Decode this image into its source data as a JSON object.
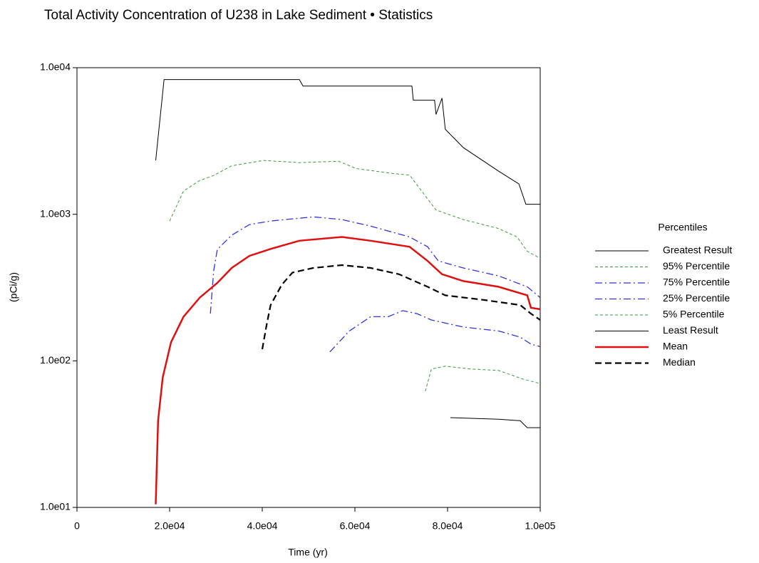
{
  "chart_data": {
    "type": "line",
    "title": "Total Activity Concentration of U238 in Lake Sediment • Statistics",
    "x_label": "Time (yr)",
    "y_label": "(pCi/g)",
    "legend_title": "Percentiles",
    "log_y": true,
    "xlim": [
      0,
      100000
    ],
    "ylim": [
      10,
      10000
    ],
    "xticks": [
      0,
      {
        "value": 20000,
        "label": "2.0e04"
      },
      {
        "value": 40000,
        "label": "4.0e04"
      },
      {
        "value": 60000,
        "label": "6.0e04"
      },
      {
        "value": 80000,
        "label": "8.0e04"
      },
      {
        "value": 100000,
        "label": "1.0e05"
      }
    ],
    "yticks": [
      {
        "value": 10,
        "label": "1.0e01"
      },
      {
        "value": 100,
        "label": "1.0e02"
      },
      {
        "value": 1000,
        "label": "1.0e03"
      },
      {
        "value": 10000,
        "label": "1.0e04"
      }
    ],
    "series": [
      {
        "name": "Greatest Result",
        "color": "#000000",
        "style": "solid",
        "linewidth": 1,
        "x": [
          17000,
          18800,
          48000,
          48800,
          72300,
          72600,
          77200,
          77500,
          78800,
          79500,
          83400,
          91000,
          95400,
          96900,
          100000
        ],
        "values": [
          2330,
          8300,
          8300,
          7500,
          7500,
          6000,
          6000,
          4800,
          6200,
          3800,
          2850,
          1970,
          1610,
          1170,
          1170
        ]
      },
      {
        "name": "95% Percentile",
        "color": "#3a9a3a",
        "style": "dashed",
        "linewidth": 1,
        "x": [
          20000,
          23000,
          26500,
          29500,
          33400,
          40300,
          48000,
          56500,
          60300,
          68000,
          71800,
          77500,
          83400,
          91000,
          95000,
          97200,
          100000
        ],
        "values": [
          900,
          1440,
          1700,
          1840,
          2140,
          2330,
          2250,
          2300,
          2050,
          1900,
          1850,
          1070,
          920,
          800,
          700,
          560,
          500
        ]
      },
      {
        "name": "75% Percentile",
        "color": "#3333dd",
        "style": "dashdot",
        "linewidth": 1.3,
        "x": [
          28800,
          29500,
          30300,
          33400,
          37200,
          41800,
          48000,
          51000,
          57200,
          63400,
          71800,
          75700,
          78000,
          83400,
          91000,
          97200,
          100000
        ],
        "values": [
          210,
          411,
          575,
          720,
          850,
          900,
          940,
          960,
          920,
          830,
          700,
          600,
          480,
          430,
          380,
          320,
          270
        ]
      },
      {
        "name": "25% Percentile",
        "color": "#3333dd",
        "style": "dashdot",
        "linewidth": 1.3,
        "x": [
          54600,
          58800,
          63400,
          67200,
          70300,
          73400,
          76500,
          83400,
          91000,
          95700,
          98000,
          100000
        ],
        "values": [
          115,
          160,
          200,
          200,
          220,
          210,
          190,
          170,
          160,
          145,
          130,
          125
        ]
      },
      {
        "name": "5% Percentile",
        "color": "#3a9a3a",
        "style": "dashed",
        "linewidth": 1,
        "x": [
          75200,
          76500,
          79500,
          85000,
          91000,
          96300,
          100000
        ],
        "values": [
          62,
          88,
          92,
          88,
          86,
          75,
          70
        ]
      },
      {
        "name": "Least Result",
        "color": "#000000",
        "style": "solid",
        "linewidth": 1,
        "x": [
          80600,
          91000,
          95700,
          97200,
          100000
        ],
        "values": [
          41,
          40,
          39,
          35,
          35
        ]
      },
      {
        "name": "Mean",
        "color": "#e01010",
        "style": "solid",
        "linewidth": 2.5,
        "x": [
          17000,
          17500,
          18500,
          20300,
          23000,
          26500,
          30300,
          33400,
          37200,
          41800,
          48000,
          57200,
          63400,
          71800,
          75700,
          78800,
          83400,
          91000,
          97200,
          98000,
          100000
        ],
        "values": [
          10.5,
          39,
          77,
          134,
          200,
          270,
          340,
          430,
          520,
          580,
          660,
          700,
          660,
          600,
          480,
          390,
          350,
          320,
          280,
          230,
          225
        ]
      },
      {
        "name": "Median",
        "color": "#000000",
        "style": "bigdash",
        "linewidth": 2.2,
        "x": [
          40000,
          41000,
          41800,
          44200,
          46500,
          51000,
          57200,
          63400,
          69500,
          75700,
          79500,
          88000,
          95700,
          98000,
          100000
        ],
        "values": [
          120,
          180,
          240,
          330,
          400,
          430,
          450,
          430,
          390,
          320,
          280,
          260,
          240,
          210,
          190
        ]
      }
    ]
  }
}
